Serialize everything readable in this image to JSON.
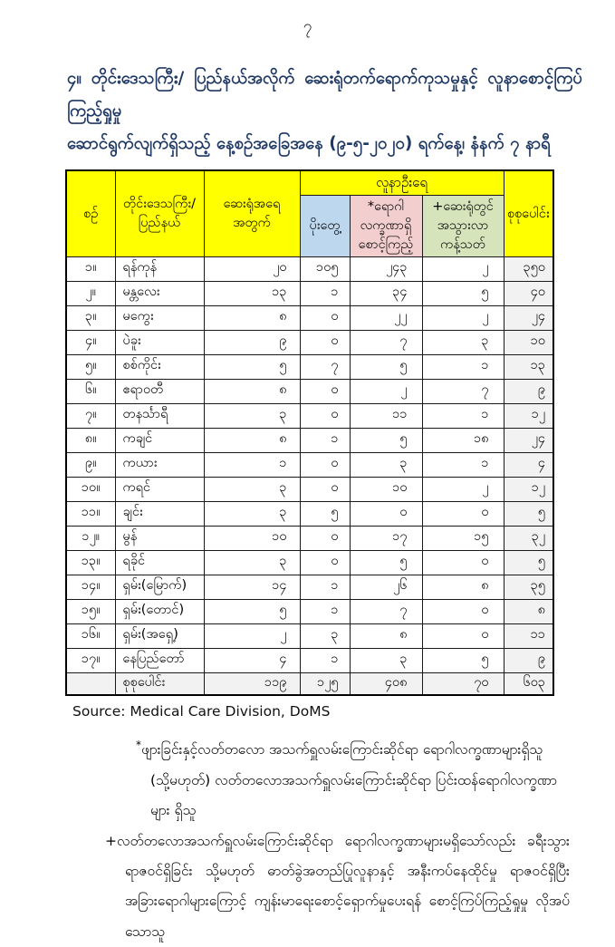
{
  "page": {
    "number": "၇"
  },
  "title": {
    "line1": "၄။ တိုင်းဒေသကြီး/ ပြည်နယ်အလိုက် ဆေးရုံတက်ရောက်ကုသမှုနှင့် လူနာစောင့်ကြပ်ကြည့်ရှုမှု",
    "line2": "ဆောင်ရွက်လျက်ရှိသည့် နေ့စဉ်အခြေအနေ (၉-၅-၂၀၂၀) ရက်နေ့၊ နံနက် ၇ နာရီ"
  },
  "table": {
    "headers": {
      "serial": "စဉ်",
      "region": "တိုင်းဒေသကြီး/\nပြည်နယ်",
      "hospitals": "ဆေးရုံအရေ\nအတွက်",
      "patients_group": "လူနာဦးရေ",
      "positive": "ပိုးတွေ့",
      "symptomatic": "*ရောဂါ\nလက္ခဏာရှိ\nစောင့်ကြည့်",
      "quarantine": "+ဆေးရုံတွင်\nအသွားလာ\nကန့်သတ်",
      "total": "စုစုပေါင်း"
    },
    "rows": [
      {
        "serial": "၁။",
        "region": "ရန်ကုန်",
        "hospitals": "၂၀",
        "positive": "၁၀၅",
        "symptomatic": "၂၄၃",
        "quarantine": "၂",
        "total": "၃၅၀"
      },
      {
        "serial": "၂။",
        "region": "မန္တလေး",
        "hospitals": "၁၃",
        "positive": "၁",
        "symptomatic": "၃၄",
        "quarantine": "၅",
        "total": "၄၀"
      },
      {
        "serial": "၃။",
        "region": "မကွေး",
        "hospitals": "၈",
        "positive": "၀",
        "symptomatic": "၂၂",
        "quarantine": "၂",
        "total": "၂၄"
      },
      {
        "serial": "၄။",
        "region": "ပဲခူး",
        "hospitals": "၉",
        "positive": "၀",
        "symptomatic": "၇",
        "quarantine": "၃",
        "total": "၁၀"
      },
      {
        "serial": "၅။",
        "region": "စစ်ကိုင်း",
        "hospitals": "၅",
        "positive": "၇",
        "symptomatic": "၅",
        "quarantine": "၁",
        "total": "၁၃"
      },
      {
        "serial": "၆။",
        "region": "ဧရာဝတီ",
        "hospitals": "၈",
        "positive": "၀",
        "symptomatic": "၂",
        "quarantine": "၇",
        "total": "၉"
      },
      {
        "serial": "၇။",
        "region": "တနင်္သာရီ",
        "hospitals": "၃",
        "positive": "၀",
        "symptomatic": "၁၁",
        "quarantine": "၁",
        "total": "၁၂"
      },
      {
        "serial": "၈။",
        "region": "ကချင်",
        "hospitals": "၈",
        "positive": "၁",
        "symptomatic": "၅",
        "quarantine": "၁၈",
        "total": "၂၄"
      },
      {
        "serial": "၉။",
        "region": "ကယား",
        "hospitals": "၁",
        "positive": "၀",
        "symptomatic": "၃",
        "quarantine": "၁",
        "total": "၄"
      },
      {
        "serial": "၁၀။",
        "region": "ကရင်",
        "hospitals": "၃",
        "positive": "၀",
        "symptomatic": "၁၀",
        "quarantine": "၂",
        "total": "၁၂"
      },
      {
        "serial": "၁၁။",
        "region": "ချင်း",
        "hospitals": "၃",
        "positive": "၅",
        "symptomatic": "၀",
        "quarantine": "၀",
        "total": "၅"
      },
      {
        "serial": "၁၂။",
        "region": "မွန်",
        "hospitals": "၁၀",
        "positive": "၀",
        "symptomatic": "၁၇",
        "quarantine": "၁၅",
        "total": "၃၂"
      },
      {
        "serial": "၁၃။",
        "region": "ရခိုင်",
        "hospitals": "၃",
        "positive": "၀",
        "symptomatic": "၅",
        "quarantine": "၀",
        "total": "၅"
      },
      {
        "serial": "၁၄။",
        "region": "ရှမ်း(မြောက်)",
        "hospitals": "၁၄",
        "positive": "၁",
        "symptomatic": "၂၆",
        "quarantine": "၈",
        "total": "၃၅"
      },
      {
        "serial": "၁၅။",
        "region": "ရှမ်း(တောင်)",
        "hospitals": "၅",
        "positive": "၁",
        "symptomatic": "၇",
        "quarantine": "၀",
        "total": "၈"
      },
      {
        "serial": "၁၆။",
        "region": "ရှမ်း(အရှေ့)",
        "hospitals": "၂",
        "positive": "၃",
        "symptomatic": "၈",
        "quarantine": "၀",
        "total": "၁၁"
      },
      {
        "serial": "၁၇။",
        "region": "နေပြည်တော်",
        "hospitals": "၄",
        "positive": "၁",
        "symptomatic": "၃",
        "quarantine": "၅",
        "total": "၉"
      }
    ],
    "total_row": {
      "label": "စုစုပေါင်း",
      "hospitals": "၁၁၉",
      "positive": "၁၂၅",
      "symptomatic": "၄၀၈",
      "quarantine": "၇၀",
      "total": "၆၀၃"
    }
  },
  "source": "Source: Medical Care Division, DoMS",
  "footnotes": [
    {
      "marker": "*",
      "text": "ဖျားခြင်းနှင့်လတ်တလော အသက်ရှူလမ်းကြောင်းဆိုင်ရာ ရောဂါလက္ခဏာများရှိသူ (သို့မဟုတ်) လတ်တလောအသက်ရှူလမ်းကြောင်းဆိုင်ရာ ပြင်းထန်ရောဂါလက္ခဏာများ ရှိသူ"
    },
    {
      "marker": "+",
      "text": "လတ်တလောအသက်ရှူလမ်းကြောင်းဆိုင်ရာ ရောဂါလက္ခဏာများမရှိသော်လည်း ခရီးသွားရာဇဝင်ရှိခြင်း သို့မဟုတ် ဓာတ်ခွဲအတည်ပြုလူနာနှင့် အနီးကပ်နေထိုင်မှု ရာဇဝင်ရှိပြီး အခြားရောဂါများကြောင့် ကျန်းမာရေးစောင့်ရှောက်မှုပေးရန် စောင့်ကြပ်ကြည့်ရှုမှု လိုအပ်သောသူ"
    }
  ],
  "colors": {
    "title_navy": "#1f3864",
    "header_yellow": "#ffff00",
    "positive_blue": "#bdd7ee",
    "symptomatic_pink": "#f2cece",
    "quarantine_green": "#d6e4bc",
    "total_grey": "#f2f2f2",
    "border": "#000000"
  }
}
